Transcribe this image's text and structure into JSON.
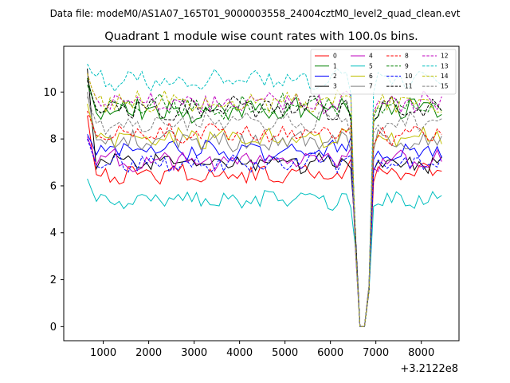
{
  "figure": {
    "suptitle": "Data file: modeM0/AS1A07_165T01_9000003558_24004cztM0_level2_quad_clean.evt"
  },
  "chart_data": {
    "type": "line",
    "title": "Quadrant 1 module wise count rates with 100.0s bins.",
    "xlabel": "",
    "ylabel": "",
    "x_offset_label": "+3.2122e8",
    "xlim": [
      130,
      8830
    ],
    "ylim": [
      -0.6,
      11.95
    ],
    "x_ticks": [
      1000,
      2000,
      3000,
      4000,
      5000,
      6000,
      7000,
      8000
    ],
    "y_ticks": [
      0,
      2,
      4,
      6,
      8,
      10
    ],
    "x_start": 650,
    "x_step": 100,
    "legend_position": "upper-right",
    "legend_columns": 4,
    "gap_region": {
      "start": 6550,
      "end": 6950,
      "note": "count rates drop to ~0 during data gap (SAA)"
    },
    "series": [
      {
        "name": "0",
        "color": "#ff0000",
        "dashed": false,
        "level": 6.5,
        "amp": 0.35,
        "seed": 1,
        "start": 9.0,
        "mid": 8.2
      },
      {
        "name": "1",
        "color": "#008000",
        "dashed": false,
        "level": 9.2,
        "amp": 0.45,
        "seed": 2,
        "start": 10.6,
        "mid": 8.4
      },
      {
        "name": "2",
        "color": "#0000ff",
        "dashed": false,
        "level": 7.5,
        "amp": 0.35,
        "seed": 3,
        "start": 8.2,
        "mid": 7.6
      },
      {
        "name": "3",
        "color": "#000000",
        "dashed": false,
        "level": 7.0,
        "amp": 0.35,
        "seed": 4,
        "start": 11.0,
        "mid": 8.0
      },
      {
        "name": "4",
        "color": "#bf00bf",
        "dashed": false,
        "level": 7.1,
        "amp": 0.35,
        "seed": 5,
        "start": 8.1,
        "mid": 7.7
      },
      {
        "name": "5",
        "color": "#00bfbf",
        "dashed": false,
        "level": 5.4,
        "amp": 0.3,
        "seed": 6,
        "start": 6.3,
        "mid": 5.8
      },
      {
        "name": "6",
        "color": "#bfbf00",
        "dashed": false,
        "level": 8.0,
        "amp": 0.4,
        "seed": 7,
        "start": 9.5,
        "mid": 8.0
      },
      {
        "name": "7",
        "color": "#808080",
        "dashed": false,
        "level": 7.9,
        "amp": 0.4,
        "seed": 8,
        "start": 10.0,
        "mid": 8.2
      },
      {
        "name": "8",
        "color": "#ff0000",
        "dashed": true,
        "level": 8.2,
        "amp": 0.35,
        "seed": 9,
        "start": 9.2,
        "mid": 8.0
      },
      {
        "name": "9",
        "color": "#008000",
        "dashed": true,
        "level": 9.4,
        "amp": 0.4,
        "seed": 10,
        "start": 10.3,
        "mid": 8.6
      },
      {
        "name": "10",
        "color": "#0000ff",
        "dashed": true,
        "level": 7.0,
        "amp": 0.35,
        "seed": 11,
        "start": 8.0,
        "mid": 7.3
      },
      {
        "name": "11",
        "color": "#000000",
        "dashed": true,
        "level": 9.3,
        "amp": 0.4,
        "seed": 12,
        "start": 10.5,
        "mid": 8.5
      },
      {
        "name": "12",
        "color": "#bf00bf",
        "dashed": true,
        "level": 9.6,
        "amp": 0.4,
        "seed": 13,
        "start": 10.8,
        "mid": 8.8
      },
      {
        "name": "13",
        "color": "#00bfbf",
        "dashed": true,
        "level": 10.5,
        "amp": 0.35,
        "seed": 14,
        "start": 11.2,
        "mid": 9.0
      },
      {
        "name": "14",
        "color": "#bfbf00",
        "dashed": true,
        "level": 9.6,
        "amp": 0.4,
        "seed": 15,
        "start": 10.8,
        "mid": 8.6
      },
      {
        "name": "15",
        "color": "#808080",
        "dashed": true,
        "level": 8.7,
        "amp": 0.4,
        "seed": 16,
        "start": 9.8,
        "mid": 8.3
      }
    ]
  }
}
